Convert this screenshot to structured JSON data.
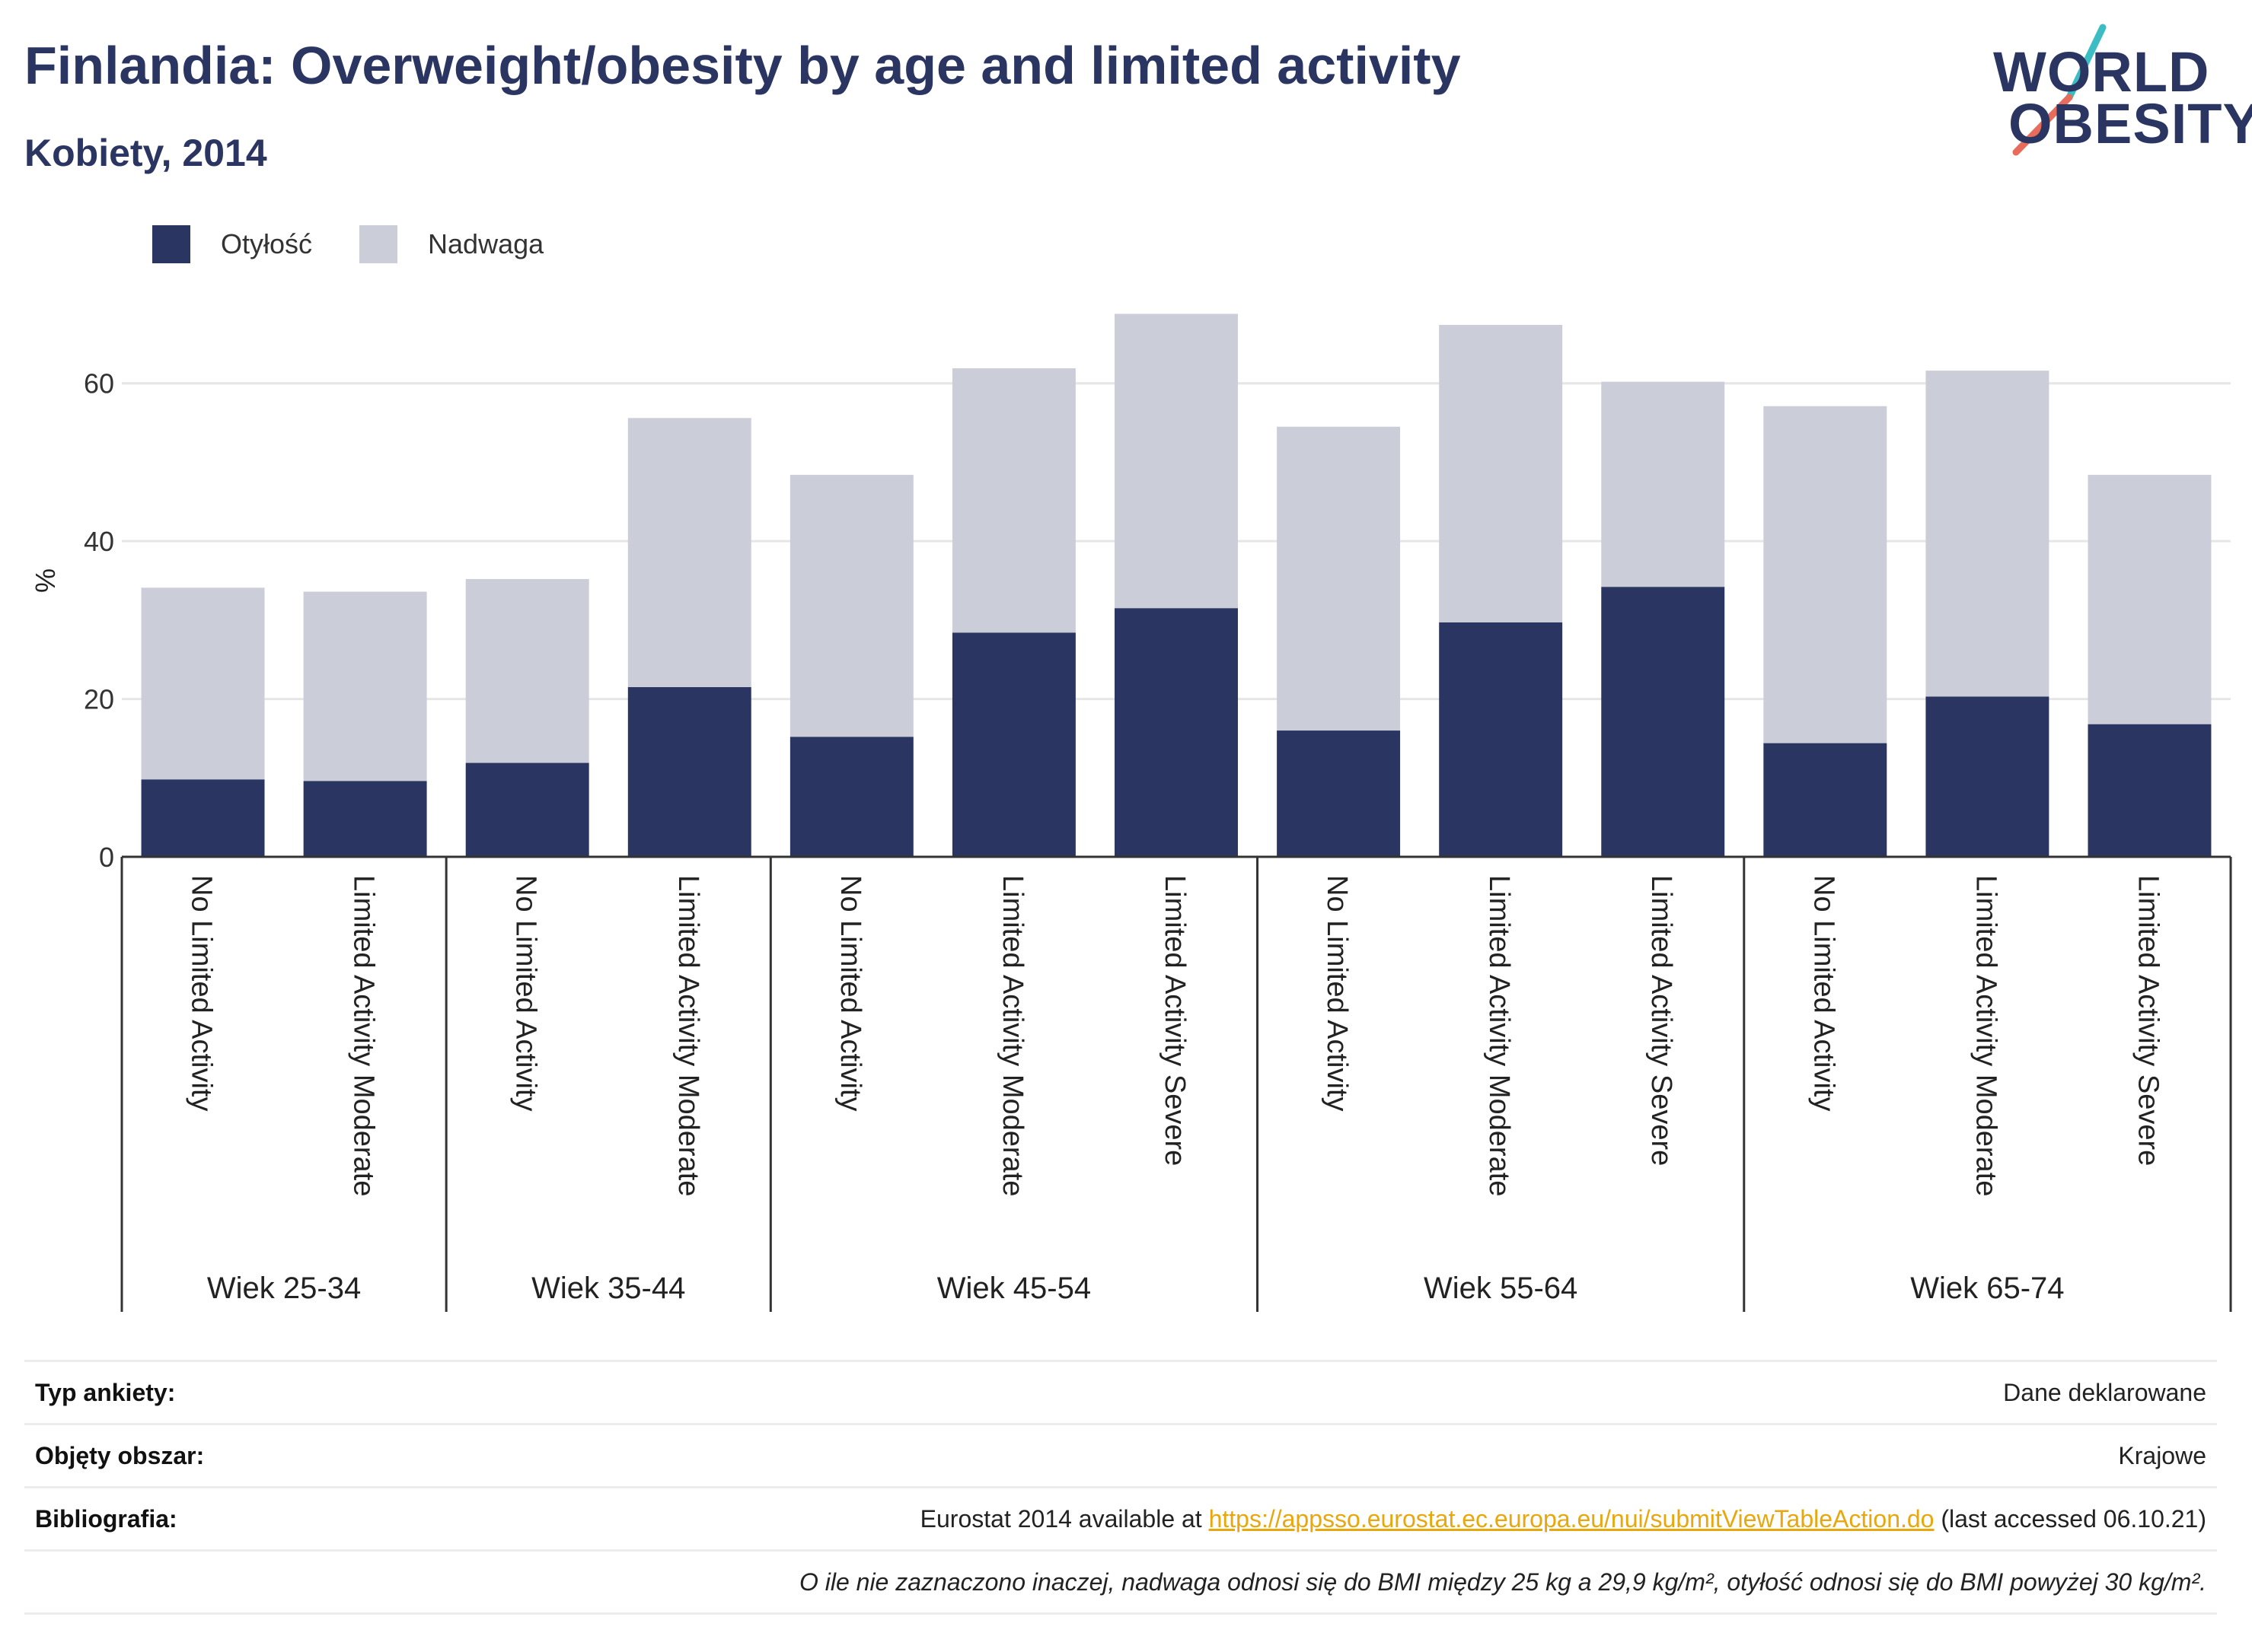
{
  "header": {
    "title": "Finlandia: Overweight/obesity by age and limited activity",
    "subtitle": "Kobiety, 2014",
    "logo_line1": "WORLD",
    "logo_line2": "OBESITY"
  },
  "colors": {
    "obesity": "#2b3561",
    "overweight": "#cbcdd9",
    "title": "#2b3561",
    "link": "#e8a70c",
    "logo_slash_top": "#3cbcc3",
    "logo_slash_bottom": "#e86c5b"
  },
  "legend": {
    "obesity_label": "Otyłość",
    "overweight_label": "Nadwaga"
  },
  "chart_data": {
    "type": "bar",
    "stacked": true,
    "ylabel": "%",
    "ylim": [
      0,
      70
    ],
    "yticks": [
      0,
      20,
      40,
      60
    ],
    "grid": true,
    "legend_position": "top-left",
    "categories": [
      "No Limited Activity",
      "Limited Activity Moderate",
      "No Limited Activity",
      "Limited Activity Moderate",
      "No Limited Activity",
      "Limited Activity Moderate",
      "Limited Activity Severe",
      "No Limited Activity",
      "Limited Activity Moderate",
      "Limited Activity Severe",
      "No Limited Activity",
      "Limited Activity Moderate",
      "Limited Activity Severe"
    ],
    "groups": [
      {
        "label": "Wiek 25-34",
        "count": 2
      },
      {
        "label": "Wiek 35-44",
        "count": 2
      },
      {
        "label": "Wiek 45-54",
        "count": 3
      },
      {
        "label": "Wiek 55-64",
        "count": 3
      },
      {
        "label": "Wiek 65-74",
        "count": 3
      }
    ],
    "series": [
      {
        "name": "Otyłość",
        "values": [
          9.8,
          9.6,
          11.9,
          21.5,
          15.2,
          28.4,
          31.5,
          16.0,
          29.7,
          34.2,
          14.4,
          20.3,
          16.8
        ]
      },
      {
        "name": "Nadwaga",
        "values": [
          24.3,
          24.0,
          23.3,
          34.1,
          33.2,
          33.5,
          37.3,
          38.5,
          37.7,
          26.0,
          42.7,
          41.3,
          31.6
        ]
      }
    ]
  },
  "info": {
    "survey_label": "Typ ankiety:",
    "survey_value": "Dane deklarowane",
    "area_label": "Objęty obszar:",
    "area_value": "Krajowe",
    "bib_label": "Bibliografia:",
    "bib_prefix": "Eurostat 2014 available at",
    "bib_link": "https://appsso.eurostat.ec.europa.eu/nui/submitViewTableAction.do",
    "bib_suffix": "(last accessed 06.10.21)",
    "note": "O ile nie zaznaczono inaczej, nadwaga odnosi się do BMI między 25 kg a 29,9 kg/m², otyłość odnosi się do BMI powyżej 30 kg/m²."
  }
}
